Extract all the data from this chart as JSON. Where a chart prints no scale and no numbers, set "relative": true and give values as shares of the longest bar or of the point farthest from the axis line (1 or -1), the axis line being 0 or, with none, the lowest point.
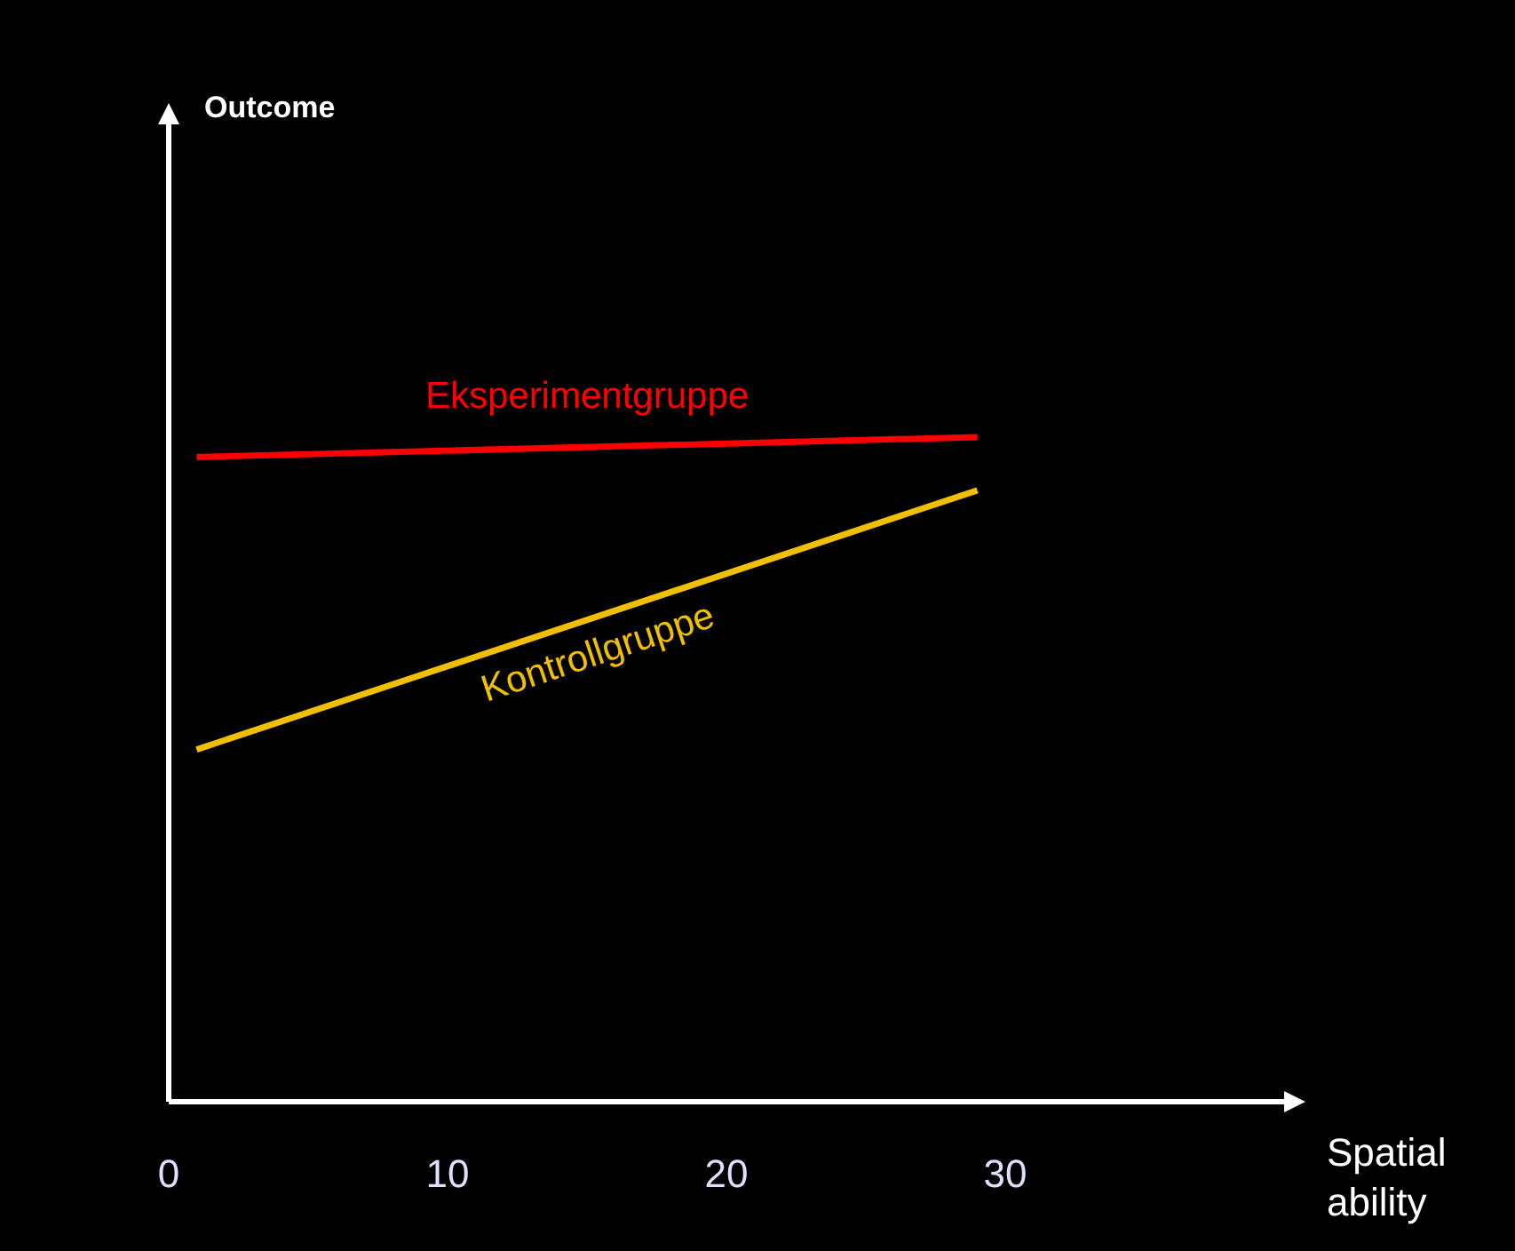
{
  "chart_data": {
    "type": "line",
    "relative": true,
    "annotations": [
      "Outcome"
    ],
    "xlabel": "Spatial ability",
    "xlim": [
      0,
      40
    ],
    "xticks": [
      0,
      10,
      20,
      30
    ],
    "tick_labels": "x",
    "x": [
      1,
      29
    ],
    "series": [
      {
        "name": "Eksperimentgruppe",
        "color": "#ff0000",
        "values": [
          0.97,
          1
        ]
      },
      {
        "name": "Kontrollgruppe",
        "color": "#f0c000",
        "values": [
          0.53,
          0.92
        ]
      }
    ]
  }
}
